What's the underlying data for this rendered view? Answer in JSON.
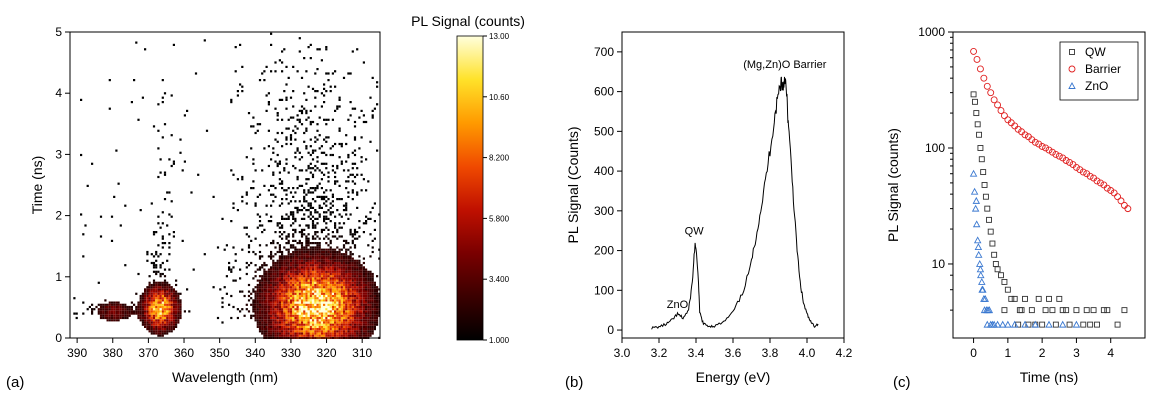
{
  "panels": {
    "a": "(a)",
    "b": "(b)",
    "c": "(c)"
  },
  "chart_data": [
    {
      "type": "heatmap",
      "panel": "(a)",
      "xlabel": "Wavelength (nm)",
      "ylabel": "Time (ns)",
      "xlim": [
        392,
        305
      ],
      "ylim": [
        0,
        5
      ],
      "x_reversed": true,
      "xticks": [
        390,
        380,
        370,
        360,
        350,
        340,
        330,
        320,
        310
      ],
      "yticks": [
        0,
        1,
        2,
        3,
        4,
        5
      ],
      "colorbar": {
        "title": "PL Signal (counts)",
        "range": [
          1.0,
          13.0
        ],
        "ticks": [
          "1.000",
          "3.400",
          "5.800",
          "8.200",
          "10.60",
          "13.00"
        ],
        "colors": [
          "#000000",
          "#3b0000",
          "#7a0000",
          "#c01000",
          "#f04a00",
          "#ff9a00",
          "#ffe22a",
          "#ffffdd"
        ]
      },
      "hotspots": [
        {
          "wavelength": 367,
          "time": 0.5,
          "peak": 9.5,
          "sigma_wl": 3.0,
          "sigma_t": 0.22
        },
        {
          "wavelength": 323,
          "time": 0.55,
          "peak": 11.0,
          "sigma_wl": 8.5,
          "sigma_t": 0.45
        },
        {
          "wavelength": 380,
          "time": 0.45,
          "peak": 2.8,
          "sigma_wl": 3.5,
          "sigma_t": 0.12
        }
      ]
    },
    {
      "type": "line",
      "panel": "(b)",
      "xlabel": "Energy (eV)",
      "ylabel": "PL Signal (Counts)",
      "xlim": [
        3.0,
        4.2
      ],
      "ylim": [
        -20,
        750
      ],
      "xticks": [
        "3.0",
        "3.2",
        "3.4",
        "3.6",
        "3.8",
        "4.0",
        "4.2"
      ],
      "yticks": [
        0,
        100,
        200,
        300,
        400,
        500,
        600,
        700
      ],
      "series": [
        {
          "x": [
            3.16,
            3.2,
            3.24,
            3.27,
            3.3,
            3.33,
            3.36,
            3.38,
            3.395,
            3.41,
            3.42,
            3.44,
            3.47,
            3.5,
            3.55,
            3.6,
            3.65,
            3.7,
            3.73,
            3.76,
            3.79,
            3.82,
            3.84,
            3.86,
            3.87,
            3.88,
            3.89,
            3.9,
            3.92,
            3.94,
            3.96,
            3.98,
            4.0,
            4.02,
            4.04,
            4.06
          ],
          "y": [
            5,
            8,
            15,
            25,
            40,
            30,
            50,
            120,
            220,
            150,
            45,
            15,
            10,
            10,
            20,
            45,
            90,
            170,
            250,
            330,
            420,
            520,
            580,
            630,
            610,
            640,
            590,
            510,
            380,
            240,
            130,
            70,
            40,
            20,
            10,
            15
          ]
        }
      ],
      "annotations": [
        {
          "text": "ZnO",
          "x": 3.3,
          "y": 55
        },
        {
          "text": "QW",
          "x": 3.39,
          "y": 240
        },
        {
          "text": "(Mg,Zn)O Barrier",
          "x": 3.88,
          "y": 660
        }
      ]
    },
    {
      "type": "scatter",
      "panel": "(c)",
      "xlabel": "Time (ns)",
      "ylabel": "PL Signal (counts)",
      "xlim": [
        -0.6,
        5.0
      ],
      "ylim": [
        2.3,
        1000
      ],
      "yscale": "log",
      "xticks": [
        0,
        1,
        2,
        3,
        4
      ],
      "yticks": [
        10,
        100,
        1000
      ],
      "legend": "top-right",
      "series": [
        {
          "name": "QW",
          "marker": "square",
          "color": "#333333",
          "x": [
            0.0,
            0.04,
            0.08,
            0.12,
            0.16,
            0.2,
            0.24,
            0.28,
            0.32,
            0.36,
            0.4,
            0.45,
            0.5,
            0.55,
            0.6,
            0.65,
            0.7,
            0.8,
            0.9,
            1.0,
            1.1,
            1.2,
            1.35,
            1.5,
            1.7,
            1.9,
            2.1,
            2.3,
            2.5,
            2.7,
            3.0,
            3.3,
            3.6,
            3.9,
            4.2,
            1.3,
            1.6,
            2.0,
            2.4,
            2.8,
            3.2,
            3.5,
            0.9,
            1.4,
            1.8,
            2.2,
            2.6,
            3.4,
            3.8,
            4.4
          ],
          "y": [
            290,
            250,
            200,
            160,
            130,
            100,
            80,
            62,
            48,
            38,
            30,
            24,
            19,
            15,
            12,
            10,
            9,
            8,
            7,
            6,
            5,
            5,
            4,
            5,
            4,
            5,
            4,
            4,
            5,
            4,
            4,
            4,
            3,
            4,
            3,
            3,
            3,
            3,
            3,
            3,
            3,
            4,
            4,
            4,
            3,
            5,
            4,
            3,
            4,
            4
          ]
        },
        {
          "name": "Barrier",
          "marker": "circle",
          "color": "#e02020",
          "x": [
            0.0,
            0.1,
            0.2,
            0.3,
            0.4,
            0.5,
            0.6,
            0.7,
            0.8,
            0.9,
            1.0,
            1.1,
            1.2,
            1.3,
            1.4,
            1.5,
            1.6,
            1.7,
            1.8,
            1.9,
            2.0,
            2.1,
            2.2,
            2.3,
            2.4,
            2.5,
            2.6,
            2.7,
            2.8,
            2.9,
            3.0,
            3.1,
            3.2,
            3.3,
            3.4,
            3.5,
            3.6,
            3.7,
            3.8,
            3.9,
            4.0,
            4.1,
            4.2,
            4.3,
            4.4,
            4.5
          ],
          "y": [
            680,
            580,
            480,
            400,
            340,
            300,
            260,
            235,
            210,
            190,
            175,
            165,
            155,
            145,
            138,
            130,
            125,
            118,
            112,
            108,
            103,
            100,
            96,
            92,
            88,
            85,
            82,
            78,
            75,
            72,
            68,
            65,
            62,
            60,
            57,
            55,
            52,
            50,
            48,
            45,
            43,
            41,
            38,
            35,
            32,
            30
          ]
        },
        {
          "name": "ZnO",
          "marker": "triangle",
          "color": "#3a78d0",
          "x": [
            0.0,
            0.03,
            0.06,
            0.09,
            0.12,
            0.15,
            0.18,
            0.21,
            0.24,
            0.27,
            0.3,
            0.34,
            0.38,
            0.42,
            0.46,
            0.5,
            0.55,
            0.6,
            0.7,
            0.85,
            1.0,
            1.2,
            1.5,
            1.8,
            2.2,
            2.6,
            3.0,
            0.08,
            0.14,
            0.2,
            0.25,
            0.32,
            0.4
          ],
          "y": [
            60,
            42,
            30,
            22,
            16,
            12,
            10,
            8,
            7,
            6,
            5,
            5,
            4,
            4,
            4,
            3,
            3,
            3,
            3,
            3,
            3,
            3,
            3,
            3,
            3,
            3,
            3,
            35,
            14,
            9,
            6,
            4,
            3
          ]
        }
      ]
    }
  ]
}
